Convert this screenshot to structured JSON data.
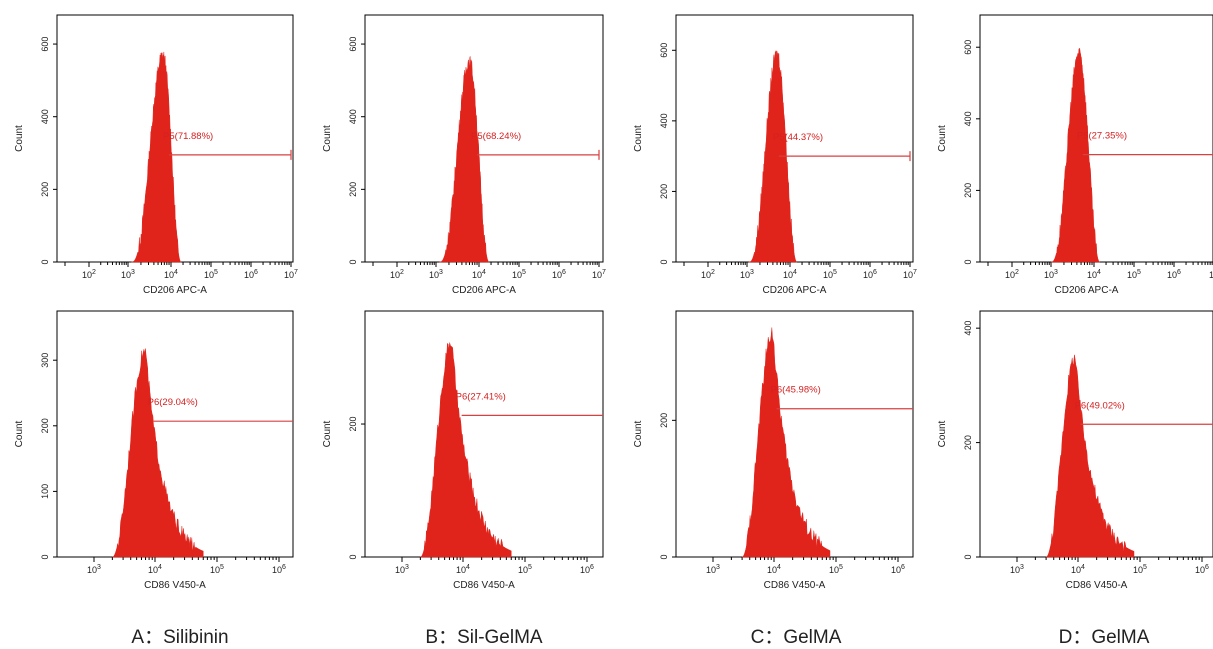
{
  "chart_data": [
    {
      "panel": "A",
      "type": "histogram",
      "ylabel": "Count",
      "xlabel": "CD206 APC-A",
      "x_scale": "biexponential",
      "x_ticks": [
        "10^2",
        "10^3",
        "10^4",
        "10^5",
        "10^6",
        "10^7"
      ],
      "y_ticks": [
        "0",
        "200",
        "400",
        "600"
      ],
      "ylim": [
        0,
        680
      ],
      "gate": {
        "label": "P5(71.88%)",
        "x_start": 9000,
        "x_end": 10000000,
        "level": 295
      },
      "peak": {
        "x": 6500,
        "count": 570,
        "x_low": 1200,
        "x_high": 18000
      }
    },
    {
      "panel": "B",
      "type": "histogram",
      "ylabel": "Count",
      "xlabel": "CD206 APC-A",
      "x_scale": "biexponential",
      "x_ticks": [
        "10^2",
        "10^3",
        "10^4",
        "10^5",
        "10^6",
        "10^7"
      ],
      "y_ticks": [
        "0",
        "200",
        "400",
        "600"
      ],
      "ylim": [
        0,
        680
      ],
      "gate": {
        "label": "P5(68.24%)",
        "x_start": 9000,
        "x_end": 10000000,
        "level": 295
      },
      "peak": {
        "x": 6000,
        "count": 555,
        "x_low": 1200,
        "x_high": 18000
      }
    },
    {
      "panel": "C",
      "type": "histogram",
      "ylabel": "Count",
      "xlabel": "CD206 APC-A",
      "x_scale": "biexponential",
      "x_ticks": [
        "10^2",
        "10^3",
        "10^4",
        "10^5",
        "10^6",
        "10^7"
      ],
      "y_ticks": [
        "0",
        "200",
        "400",
        "600"
      ],
      "ylim": [
        0,
        700
      ],
      "gate": {
        "label": "P5(44.37%)",
        "x_start": 5500,
        "x_end": 10000000,
        "level": 300
      },
      "peak": {
        "x": 5000,
        "count": 590,
        "x_low": 1100,
        "x_high": 15000
      }
    },
    {
      "panel": "D",
      "type": "histogram",
      "ylabel": "Count",
      "xlabel": "CD206 APC-A",
      "x_scale": "biexponential",
      "x_ticks": [
        "10^2",
        "10^3",
        "10^4",
        "10^5",
        "10^6",
        "10"
      ],
      "y_ticks": [
        "0",
        "200",
        "400",
        "600"
      ],
      "ylim": [
        0,
        690
      ],
      "gate": {
        "label": "P5(27.35%)",
        "x_start": 5500,
        "x_end": 10000000,
        "level": 300
      },
      "peak": {
        "x": 4500,
        "count": 585,
        "x_low": 1000,
        "x_high": 14000
      }
    },
    {
      "panel": "A",
      "type": "histogram",
      "ylabel": "Count",
      "xlabel": "CD86 V450-A",
      "x_scale": "log",
      "x_ticks": [
        "10^3",
        "10^4",
        "10^5",
        "10^6"
      ],
      "y_ticks": [
        "0",
        "100",
        "200",
        "300"
      ],
      "ylim": [
        0,
        375
      ],
      "gate": {
        "label": "P6(29.04%)",
        "x_start": 9500,
        "x_end": 4000000,
        "level": 207
      },
      "peak": {
        "x": 7000,
        "count": 315,
        "x_low": 2000,
        "x_high": 60000
      }
    },
    {
      "panel": "B",
      "type": "histogram",
      "ylabel": "Count",
      "xlabel": "CD86 V450-A",
      "x_scale": "log",
      "x_ticks": [
        "10^3",
        "10^4",
        "10^5",
        "10^6"
      ],
      "y_ticks": [
        "0",
        "200"
      ],
      "ylim": [
        0,
        370
      ],
      "gate": {
        "label": "P6(27.41%)",
        "x_start": 9500,
        "x_end": 4000000,
        "level": 213
      },
      "peak": {
        "x": 6500,
        "count": 325,
        "x_low": 2000,
        "x_high": 60000
      }
    },
    {
      "panel": "C",
      "type": "histogram",
      "ylabel": "Count",
      "xlabel": "CD86 V450-A",
      "x_scale": "log",
      "x_ticks": [
        "10^3",
        "10^4",
        "10^5",
        "10^6"
      ],
      "y_ticks": [
        "0",
        "200"
      ],
      "ylim": [
        0,
        360
      ],
      "gate": {
        "label": "P6(45.98%)",
        "x_start": 11000,
        "x_end": 4000000,
        "level": 217
      },
      "peak": {
        "x": 9500,
        "count": 330,
        "x_low": 3000,
        "x_high": 80000
      }
    },
    {
      "panel": "D",
      "type": "histogram",
      "ylabel": "Count",
      "xlabel": "CD86 V450-A",
      "x_scale": "log",
      "x_ticks": [
        "10^3",
        "10^4",
        "10^5",
        "10^6"
      ],
      "y_ticks": [
        "0",
        "200",
        "400"
      ],
      "ylim": [
        0,
        430
      ],
      "gate": {
        "label": "P6(49.02%)",
        "x_start": 11000,
        "x_end": 4000000,
        "level": 232
      },
      "peak": {
        "x": 9000,
        "count": 350,
        "x_low": 3000,
        "x_high": 80000
      }
    }
  ],
  "captions": {
    "a": "A：Silibinin",
    "b": "B：Sil-GelMA",
    "c": "C：GelMA",
    "d": "D：GelMA"
  }
}
